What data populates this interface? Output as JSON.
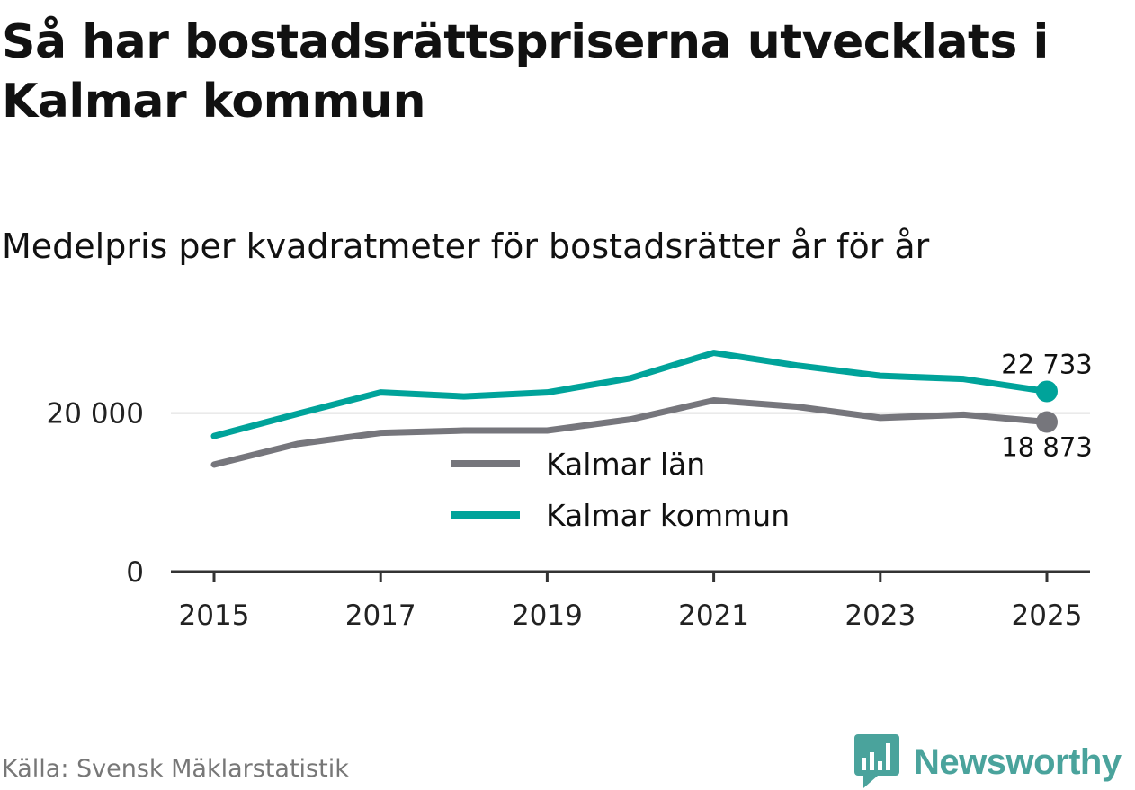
{
  "chart_data": {
    "type": "line",
    "title": "Så har bostadsrättspriserna utvecklats i Kalmar kommun",
    "subtitle": "Medelpris per kvadratmeter för bostadsrätter år för år",
    "source": "Källa: Svensk Mäklarstatistik",
    "xlabel": "",
    "ylabel": "",
    "x": [
      2015,
      2016,
      2017,
      2018,
      2019,
      2020,
      2021,
      2022,
      2023,
      2024,
      2025
    ],
    "xticks": [
      2015,
      2017,
      2019,
      2021,
      2023,
      2025
    ],
    "xtick_labels": [
      "2015",
      "2017",
      "2019",
      "2021",
      "2023",
      "2025"
    ],
    "ylim": [
      0,
      31000
    ],
    "yticks": [
      0,
      20000
    ],
    "ytick_labels": [
      "0",
      "20 000"
    ],
    "grid": "horizontal",
    "legend_placement": "center",
    "series": [
      {
        "name": "Kalmar län",
        "color": "#76767c",
        "values": [
          13500,
          16100,
          17500,
          17800,
          17800,
          19200,
          21600,
          20800,
          19400,
          19800,
          18873
        ],
        "end_label": "18 873"
      },
      {
        "name": "Kalmar kommun",
        "color": "#00a39a",
        "values": [
          17100,
          19900,
          22600,
          22100,
          22600,
          24400,
          27600,
          26000,
          24700,
          24300,
          22733
        ],
        "end_label": "22 733"
      }
    ]
  },
  "brand": {
    "name": "Newsworthy",
    "icon": "bar-chart-speech-bubble-icon",
    "color": "#4aa39c"
  }
}
